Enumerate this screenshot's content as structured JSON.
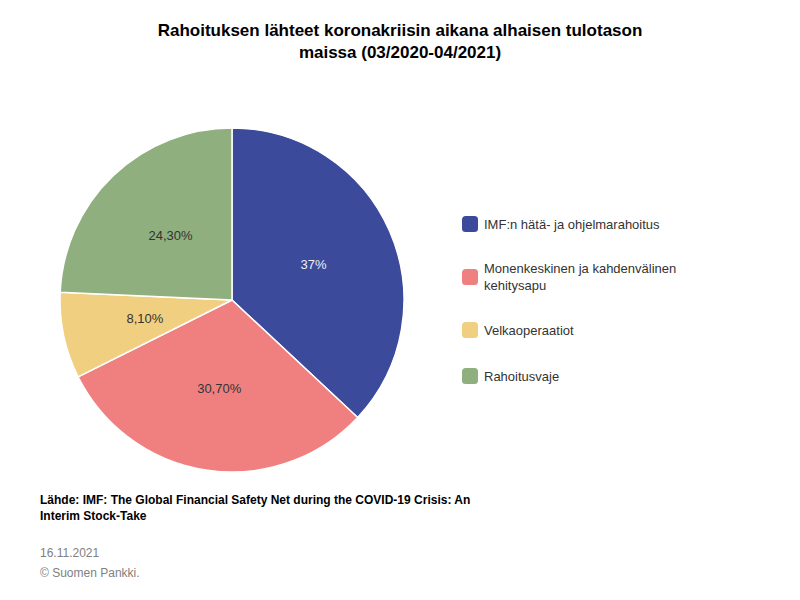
{
  "chart_data": {
    "type": "pie",
    "title": "Rahoituksen lähteet koronakriisin aikana alhaisen tulotason\nmaissa (03/2020-04/2021)",
    "categories": [
      "IMF:n hätä- ja ohjelmarahoitus",
      "Monenkeskinen ja kahdenvälinen\nkehitysapu",
      "Velkaoperaatiot",
      "Rahoitusvaje"
    ],
    "values": [
      37.0,
      30.7,
      8.1,
      24.3
    ],
    "value_labels": [
      "37%",
      "30,70%",
      "8,10%",
      "24,30%"
    ],
    "colors": [
      "#3B4A9B",
      "#F08080",
      "#F0D080",
      "#8FAF7E"
    ],
    "data_labels": true,
    "legend": "right",
    "annotations": [
      "Lähde: IMF: The Global Financial Safety Net during the COVID-19 Crisis: An\nInterim Stock-Take",
      "16.11.2021",
      "© Suomen Pankki."
    ]
  }
}
